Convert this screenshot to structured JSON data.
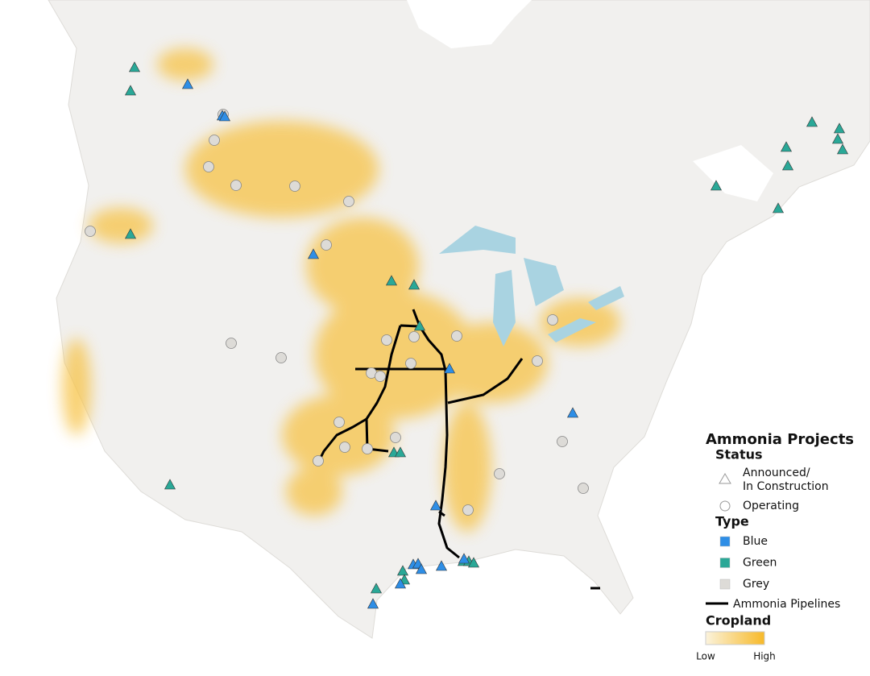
{
  "legend": {
    "title": "Ammonia Projects",
    "status": {
      "title": "Status",
      "items": [
        {
          "label": [
            "Announced/",
            "In Construction"
          ]
        },
        {
          "label": "Operating"
        }
      ]
    },
    "type": {
      "title": "Type",
      "items": [
        {
          "label": "Blue",
          "color": "#2e8ee6"
        },
        {
          "label": "Green",
          "color": "#2aa897"
        },
        {
          "label": "Grey",
          "color": "#dddbd7"
        }
      ]
    },
    "pipelines": "Ammonia Pipelines",
    "cropland": {
      "title": "Cropland",
      "low": "Low",
      "high": "High"
    }
  }
}
